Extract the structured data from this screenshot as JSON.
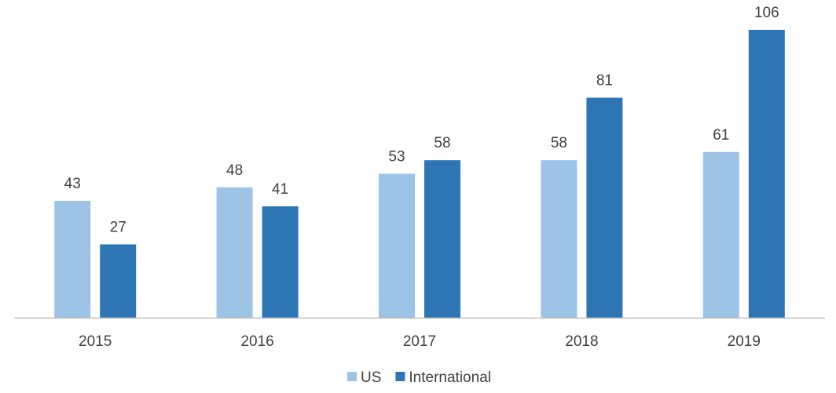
{
  "chart_data": {
    "type": "bar",
    "categories": [
      "2015",
      "2016",
      "2017",
      "2018",
      "2019"
    ],
    "series": [
      {
        "name": "US",
        "color": "#9dc3e6",
        "values": [
          43,
          48,
          53,
          58,
          61
        ]
      },
      {
        "name": "International",
        "color": "#2e75b6",
        "values": [
          27,
          41,
          58,
          81,
          106
        ]
      }
    ],
    "title": "",
    "xlabel": "",
    "ylabel": "",
    "ylim": [
      0,
      106
    ],
    "grid": false,
    "legend": "bottom-center",
    "data_labels": true,
    "axis_color": "#bfbfbf"
  }
}
